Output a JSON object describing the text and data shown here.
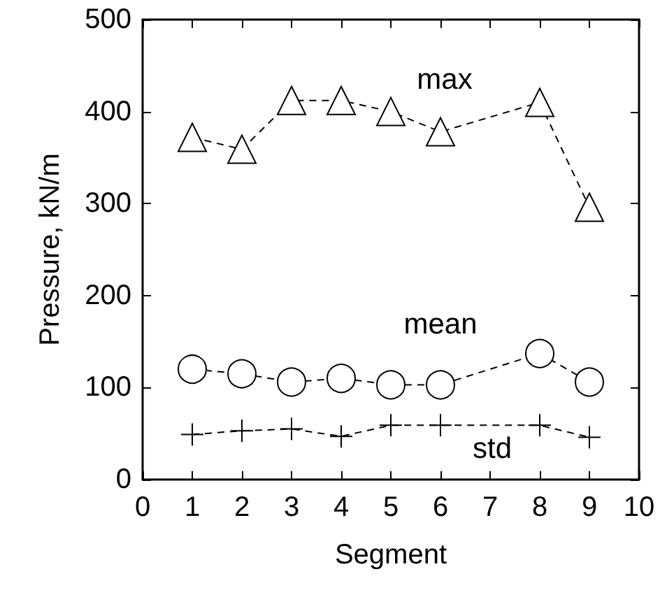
{
  "chart_data": {
    "type": "line",
    "xlabel": "Segment",
    "ylabel": "Pressure, kN/m",
    "x": [
      1,
      2,
      3,
      4,
      5,
      6,
      8,
      9
    ],
    "series": [
      {
        "name": "max",
        "color": "#000000",
        "marker": "triangle",
        "values": [
          372,
          359,
          412,
          412,
          400,
          378,
          410,
          296
        ]
      },
      {
        "name": "mean",
        "color": "#000000",
        "marker": "circle",
        "values": [
          120,
          115,
          106,
          110,
          103,
          103,
          137,
          106
        ]
      },
      {
        "name": "std",
        "color": "#000000",
        "marker": "cross",
        "values": [
          49,
          53,
          55,
          47,
          59,
          59,
          59,
          46
        ]
      }
    ],
    "xlim": [
      0,
      10
    ],
    "xticks": [
      0,
      1,
      2,
      3,
      4,
      5,
      6,
      7,
      8,
      9,
      10
    ],
    "ylim": [
      0,
      500
    ],
    "yticks": [
      0,
      100,
      200,
      300,
      400,
      500
    ],
    "line_style": "dashed",
    "grid": false,
    "legend": false
  }
}
